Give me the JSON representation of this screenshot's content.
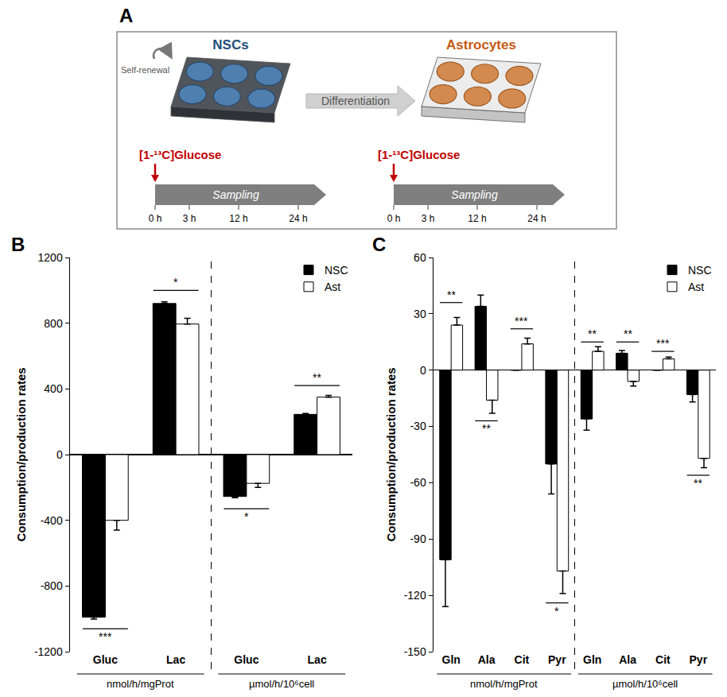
{
  "panel_a": {
    "letter": "A",
    "transition_label": "Differentiation",
    "stages": [
      {
        "title": "NSCs",
        "loop_label": "Self-renewal",
        "tracer": "[1-¹³C]Glucose",
        "timeline_label": "Sampling",
        "timepoints": [
          "0 h",
          "3 h",
          "12 h",
          "24 h"
        ]
      },
      {
        "title": "Astrocytes",
        "tracer": "[1-¹³C]Glucose",
        "timeline_label": "Sampling",
        "timepoints": [
          "0 h",
          "3 h",
          "12 h",
          "24 h"
        ]
      }
    ]
  },
  "chart_data": [
    {
      "type": "bar",
      "panel_label": "B",
      "y_label": "Consumption/production rates",
      "groups": [
        {
          "label": "nmol/h/mgProt",
          "categories": [
            "Gluc",
            "Lac"
          ]
        },
        {
          "label": "µmol/h/10⁶cell",
          "categories": [
            "Gluc",
            "Lac"
          ]
        }
      ],
      "series": [
        {
          "name": "NSC",
          "color": "#000000",
          "values": [
            -990,
            920,
            -255,
            245
          ],
          "errors": [
            12,
            10,
            8,
            5
          ]
        },
        {
          "name": "Ast",
          "color": "#ffffff",
          "values": [
            -400,
            795,
            -175,
            350
          ],
          "errors": [
            60,
            35,
            25,
            10
          ]
        }
      ],
      "ylim": [
        -1200,
        1200
      ],
      "yticks": [
        -1200,
        -800,
        -400,
        0,
        400,
        800,
        1200
      ],
      "grid": false,
      "legend": "top right",
      "significance": [
        {
          "index": 0,
          "y": -1060,
          "text": "***"
        },
        {
          "index": 1,
          "y": 1000,
          "text": "*"
        },
        {
          "index": 2,
          "y": -330,
          "text": "*"
        },
        {
          "index": 3,
          "y": 420,
          "text": "**"
        }
      ]
    },
    {
      "type": "bar",
      "panel_label": "C",
      "y_label": "Consumption/production rates",
      "groups": [
        {
          "label": "nmol/h/mgProt",
          "categories": [
            "Gln",
            "Ala",
            "Cit",
            "Pyr"
          ]
        },
        {
          "label": "µmol/h/10⁶cell",
          "categories": [
            "Gln",
            "Ala",
            "Cit",
            "Pyr"
          ]
        }
      ],
      "series": [
        {
          "name": "NSC",
          "color": "#000000",
          "values": [
            -101,
            34,
            0,
            -50,
            -26,
            9,
            0,
            -13
          ],
          "errors": [
            25,
            6,
            0,
            16,
            6,
            1.5,
            0,
            4
          ]
        },
        {
          "name": "Ast",
          "color": "#ffffff",
          "values": [
            24,
            -16,
            14,
            -107,
            10,
            -6,
            6,
            -47
          ],
          "errors": [
            4,
            7,
            3,
            12,
            2.5,
            2.5,
            1,
            5
          ]
        }
      ],
      "ylim": [
        -150,
        60
      ],
      "yticks": [
        -150,
        -120,
        -90,
        -60,
        -30,
        0,
        30,
        60
      ],
      "grid": false,
      "legend": "top right",
      "significance": [
        {
          "index": 0,
          "y": 36,
          "text": "**"
        },
        {
          "index": 1,
          "y": -27,
          "text": "**"
        },
        {
          "index": 2,
          "y": 22,
          "text": "***"
        },
        {
          "index": 3,
          "y": -124,
          "text": "*"
        },
        {
          "index": 4,
          "y": 15,
          "text": "**"
        },
        {
          "index": 5,
          "y": 15,
          "text": "**"
        },
        {
          "index": 6,
          "y": 10,
          "text": "***"
        },
        {
          "index": 7,
          "y": -56,
          "text": "**"
        }
      ]
    }
  ]
}
